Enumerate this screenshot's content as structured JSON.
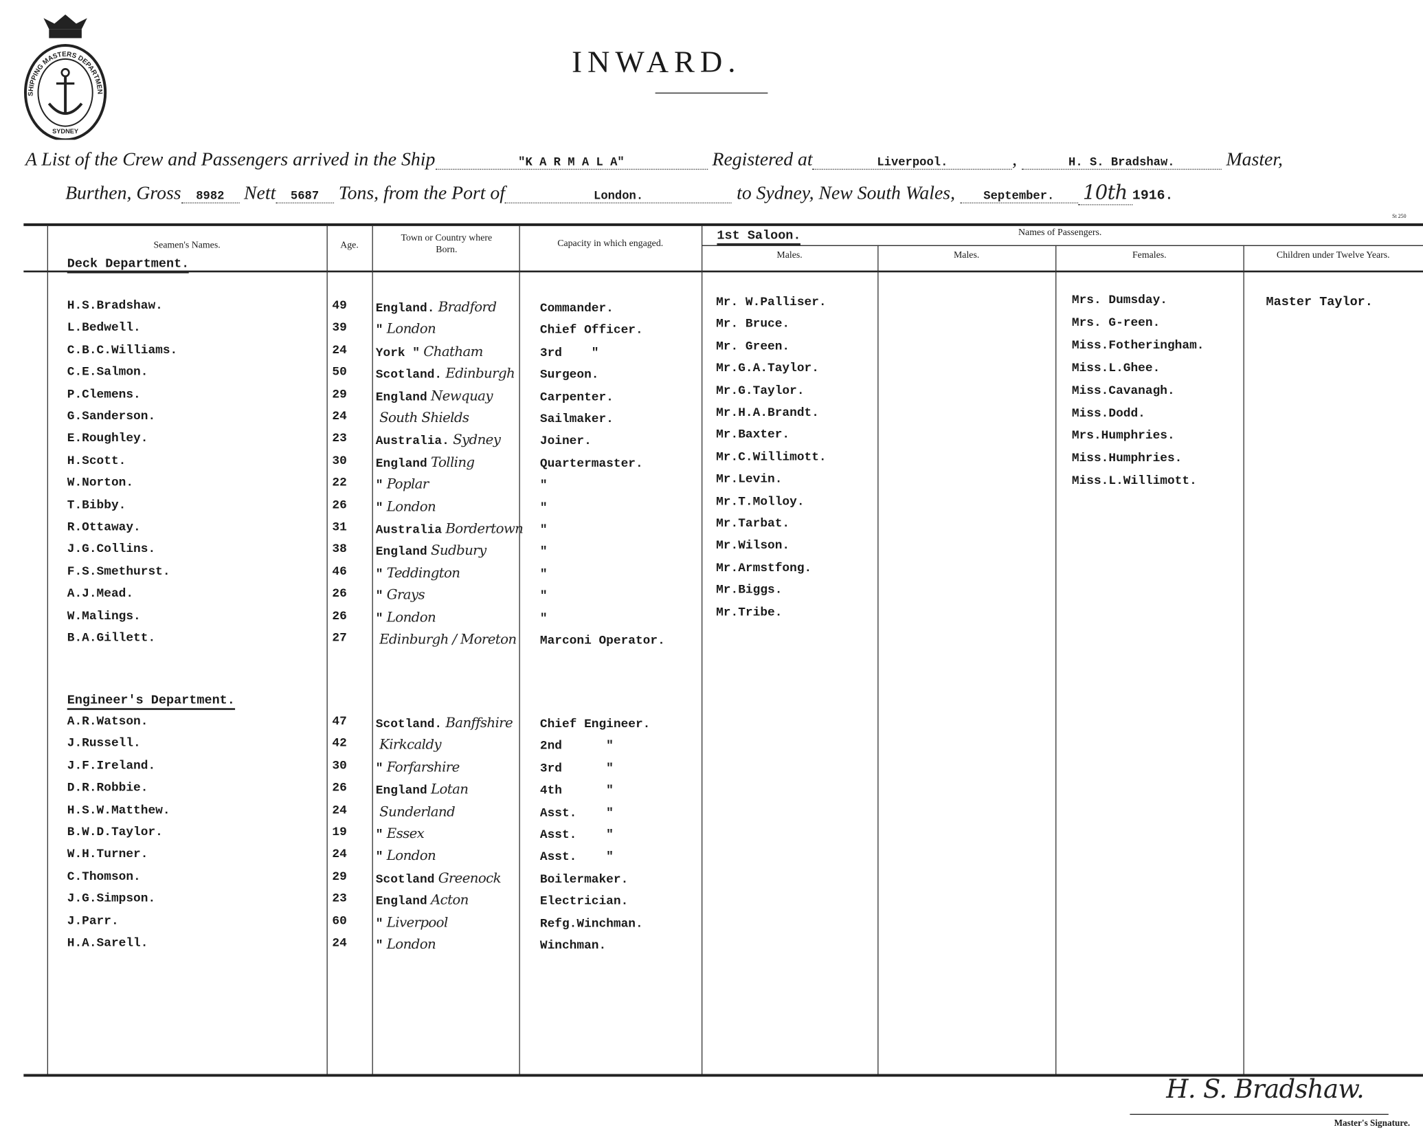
{
  "header": {
    "seal_text": "SHIPPING MASTERS DEPARTMENT · SYDNEY",
    "title": "INWARD.",
    "line1": {
      "prefix": "A List of the Crew and Passengers arrived in the Ship",
      "ship": "\"K A R M A L A\"",
      "registered_label": "Registered at",
      "registered": "Liverpool.",
      "master_name": "H. S. Bradshaw.",
      "master_label": "Master,"
    },
    "line2": {
      "burthen_label": "Burthen, Gross",
      "gross": "8982",
      "nett_label": "Nett",
      "nett": "5687",
      "tons_label": "Tons, from the Port of",
      "port": "London.",
      "to_label": "to Sydney, New South Wales,",
      "month": "September.",
      "day": "10th",
      "year": "1916."
    },
    "form_no": "St 250"
  },
  "columns": {
    "seamen": "Seamen's Names.",
    "age": "Age.",
    "town": "Town or Country where Born.",
    "capacity": "Capacity in which engaged.",
    "passengers": "Names of Passengers.",
    "saloon": "1st Saloon.",
    "males1": "Males.",
    "males2": "Males.",
    "females": "Females.",
    "children": "Children under Twelve Years."
  },
  "deck": {
    "title": "Deck Department.",
    "rows": [
      {
        "name": "H.S.Bradshaw.",
        "age": "49",
        "country": "England.",
        "town": "Bradford",
        "capacity": "Commander."
      },
      {
        "name": "L.Bedwell.",
        "age": "39",
        "country": "\"",
        "town": "London",
        "capacity": "Chief Officer."
      },
      {
        "name": "C.B.C.Williams.",
        "age": "24",
        "country": "York \"",
        "town": "Chatham",
        "capacity": "3rd    \""
      },
      {
        "name": "C.E.Salmon.",
        "age": "50",
        "country": "Scotland.",
        "town": "Edinburgh",
        "capacity": "Surgeon."
      },
      {
        "name": "P.Clemens.",
        "age": "29",
        "country": "England",
        "town": "Newquay",
        "capacity": "Carpenter."
      },
      {
        "name": "G.Sanderson.",
        "age": "24",
        "country": "",
        "town": "South Shields",
        "capacity": "Sailmaker."
      },
      {
        "name": "E.Roughley.",
        "age": "23",
        "country": "Australia.",
        "town": "Sydney",
        "capacity": "Joiner."
      },
      {
        "name": "H.Scott.",
        "age": "30",
        "country": "England",
        "town": "Tolling",
        "capacity": "Quartermaster."
      },
      {
        "name": "W.Norton.",
        "age": "22",
        "country": "\"",
        "town": "Poplar",
        "capacity": "\""
      },
      {
        "name": "T.Bibby.",
        "age": "26",
        "country": "\"",
        "town": "London",
        "capacity": "\""
      },
      {
        "name": "R.Ottaway.",
        "age": "31",
        "country": "Australia",
        "town": "Bordertown",
        "capacity": "\""
      },
      {
        "name": "J.G.Collins.",
        "age": "38",
        "country": "England",
        "town": "Sudbury",
        "capacity": "\""
      },
      {
        "name": "F.S.Smethurst.",
        "age": "46",
        "country": "\"",
        "town": "Teddington",
        "capacity": "\""
      },
      {
        "name": "A.J.Mead.",
        "age": "26",
        "country": "\"",
        "town": "Grays",
        "capacity": "\""
      },
      {
        "name": "W.Malings.",
        "age": "26",
        "country": "\"",
        "town": "London",
        "capacity": "\""
      },
      {
        "name": "B.A.Gillett.",
        "age": "27",
        "country": "",
        "town": "Edinburgh / Moreton",
        "capacity": "Marconi Operator."
      }
    ]
  },
  "engineers": {
    "title": "Engineer's Department.",
    "rows": [
      {
        "name": "A.R.Watson.",
        "age": "47",
        "country": "Scotland.",
        "town": "Banffshire",
        "capacity": "Chief Engineer."
      },
      {
        "name": "J.Russell.",
        "age": "42",
        "country": "",
        "town": "Kirkcaldy",
        "capacity": "2nd      \""
      },
      {
        "name": "J.F.Ireland.",
        "age": "30",
        "country": "\"",
        "town": "Forfarshire",
        "capacity": "3rd      \""
      },
      {
        "name": "D.R.Robbie.",
        "age": "26",
        "country": "England",
        "town": "Lotan",
        "capacity": "4th      \""
      },
      {
        "name": "H.S.W.Matthew.",
        "age": "24",
        "country": "",
        "town": "Sunderland",
        "capacity": "Asst.    \""
      },
      {
        "name": "B.W.D.Taylor.",
        "age": "19",
        "country": "\"",
        "town": "Essex",
        "capacity": "Asst.    \""
      },
      {
        "name": "W.H.Turner.",
        "age": "24",
        "country": "\"",
        "town": "London",
        "capacity": "Asst.    \""
      },
      {
        "name": "C.Thomson.",
        "age": "29",
        "country": "Scotland",
        "town": "Greenock",
        "capacity": "Boilermaker."
      },
      {
        "name": "J.G.Simpson.",
        "age": "23",
        "country": "England",
        "town": "Acton",
        "capacity": "Electrician."
      },
      {
        "name": "J.Parr.",
        "age": "60",
        "country": "\"",
        "town": "Liverpool",
        "capacity": "Refg.Winchman."
      },
      {
        "name": "H.A.Sarell.",
        "age": "24",
        "country": "\"",
        "town": "London",
        "capacity": "Winchman."
      }
    ]
  },
  "passengers": {
    "males": [
      "Mr. W.Palliser.",
      "Mr. Bruce.",
      "Mr. Green.",
      "Mr.G.A.Taylor.",
      "Mr.G.Taylor.",
      "Mr.H.A.Brandt.",
      "Mr.Baxter.",
      "Mr.C.Willimott.",
      "Mr.Levin.",
      "Mr.T.Molloy.",
      "Mr.Tarbat.",
      "Mr.Wilson.",
      "Mr.Armstfong.",
      "Mr.Biggs.",
      "Mr.Tribe."
    ],
    "females": [
      "Mrs. Dumsday.",
      "Mrs. G-reen.",
      "Miss.Fotheringham.",
      "Miss.L.Ghee.",
      "Miss.Cavanagh.",
      "Miss.Dodd.",
      "Mrs.Humphries.",
      "Miss.Humphries.",
      "Miss.L.Willimott."
    ],
    "children": [
      "Master Taylor."
    ]
  },
  "footer": {
    "signature": "H. S. Bradshaw.",
    "signature_label": "Master's Signature."
  }
}
